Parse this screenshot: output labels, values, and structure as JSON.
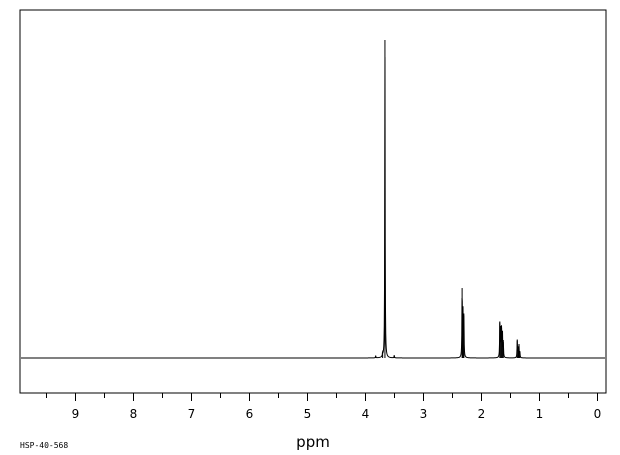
{
  "chart_data": {
    "type": "line",
    "title": "",
    "xlabel": "ppm",
    "ylabel": "",
    "sample_id": "HSP-40-568",
    "xlim": [
      9.95,
      -0.15
    ],
    "x_reversed": true,
    "ylim": [
      -0.1,
      1.0
    ],
    "x_ticks_major": [
      9,
      8,
      7,
      6,
      5,
      4,
      3,
      2,
      1,
      0
    ],
    "x_tick_labels": [
      "9",
      "8",
      "7",
      "6",
      "5",
      "4",
      "3",
      "2",
      "1",
      "0"
    ],
    "x_ticks_minor_step": 0.5,
    "grid": false,
    "legend": "none",
    "baseline_color": "#000000",
    "peaks": [
      {
        "shift": 3.66,
        "intensity": 1.0
      },
      {
        "shift": 3.7,
        "intensity": 0.012
      },
      {
        "shift": 3.82,
        "intensity": 0.006
      },
      {
        "shift": 3.5,
        "intensity": 0.008
      },
      {
        "shift": 2.33,
        "intensity": 0.22
      },
      {
        "shift": 2.315,
        "intensity": 0.14
      },
      {
        "shift": 2.3,
        "intensity": 0.14
      },
      {
        "shift": 1.68,
        "intensity": 0.115
      },
      {
        "shift": 1.665,
        "intensity": 0.09
      },
      {
        "shift": 1.65,
        "intensity": 0.095
      },
      {
        "shift": 1.635,
        "intensity": 0.08
      },
      {
        "shift": 1.62,
        "intensity": 0.05
      },
      {
        "shift": 1.38,
        "intensity": 0.055
      },
      {
        "shift": 1.365,
        "intensity": 0.035
      },
      {
        "shift": 1.35,
        "intensity": 0.04
      },
      {
        "shift": 1.335,
        "intensity": 0.02
      }
    ]
  }
}
